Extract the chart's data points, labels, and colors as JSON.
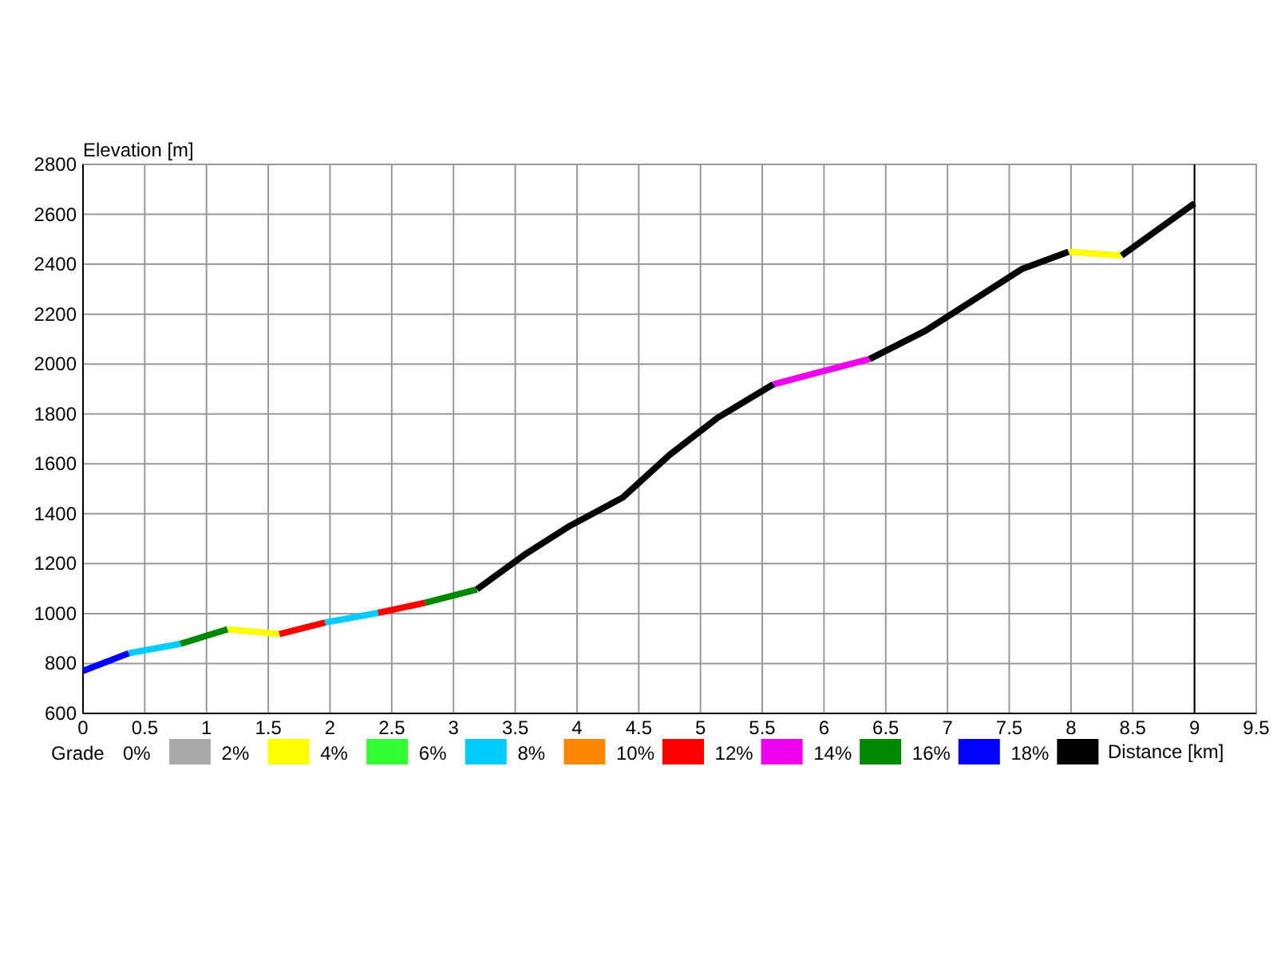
{
  "chart_data": {
    "type": "line",
    "ylabel": "Elevation [m]",
    "xlabel": "Distance [km]",
    "legend_title": "Grade",
    "xlim": [
      0,
      9.5
    ],
    "xticks": [
      0,
      0.5,
      1,
      1.5,
      2,
      2.5,
      3,
      3.5,
      4,
      4.5,
      5,
      5.5,
      6,
      6.5,
      7,
      7.5,
      8,
      8.5,
      9,
      9.5
    ],
    "ylim": [
      600,
      2800
    ],
    "yticks": [
      600,
      800,
      1000,
      1200,
      1400,
      1600,
      1800,
      2000,
      2200,
      2400,
      2600,
      2800
    ],
    "grid": true,
    "legend": "bottom",
    "line_style": "solid",
    "marker": "none",
    "ref_lines": [
      {
        "axis": "x",
        "value": 9,
        "color": "#000000"
      }
    ],
    "series": [
      {
        "name": "0%",
        "color": "#aaaaaa"
      },
      {
        "name": "2%",
        "color": "#ffff00",
        "x": [
          1.17,
          1.59,
          5,
          7.98,
          8.41
        ],
        "values": [
          937,
          918,
          null,
          2450,
          2435
        ]
      },
      {
        "name": "4%",
        "color": "#33ff33"
      },
      {
        "name": "6%",
        "color": "#00ccff",
        "x": [
          0.37,
          0.79,
          1.5,
          1.96,
          2.39
        ],
        "values": [
          841,
          879,
          null,
          964,
          1003
        ]
      },
      {
        "name": "8%",
        "color": "#ff8800"
      },
      {
        "name": "10%",
        "color": "#ff0000",
        "x": [
          1.59,
          1.96,
          2.2,
          2.39,
          2.77
        ],
        "values": [
          918,
          964,
          null,
          1003,
          1043
        ]
      },
      {
        "name": "12%",
        "color": "#ee00ee",
        "x": [
          5.59,
          6.37
        ],
        "values": [
          1919,
          2020
        ]
      },
      {
        "name": "14%",
        "color": "#008800",
        "x": [
          0.79,
          1.17,
          2,
          2.77,
          3.19
        ],
        "values": [
          879,
          937,
          null,
          1043,
          1097
        ]
      },
      {
        "name": "16%",
        "color": "#0000ff",
        "x": [
          0,
          0.37
        ],
        "values": [
          770,
          841
        ]
      },
      {
        "name": "18%",
        "color": "#000000",
        "x": [
          3.19,
          3.59,
          3.93,
          4.37,
          4.75,
          5.14,
          5.59,
          6,
          6.37,
          6.82,
          7.6,
          7.98,
          8.2,
          8.41,
          9.0
        ],
        "values": [
          1097,
          1241,
          1348,
          1465,
          1636,
          1785,
          1919,
          null,
          2020,
          2133,
          2380,
          2450,
          null,
          2435,
          2644
        ]
      }
    ]
  }
}
